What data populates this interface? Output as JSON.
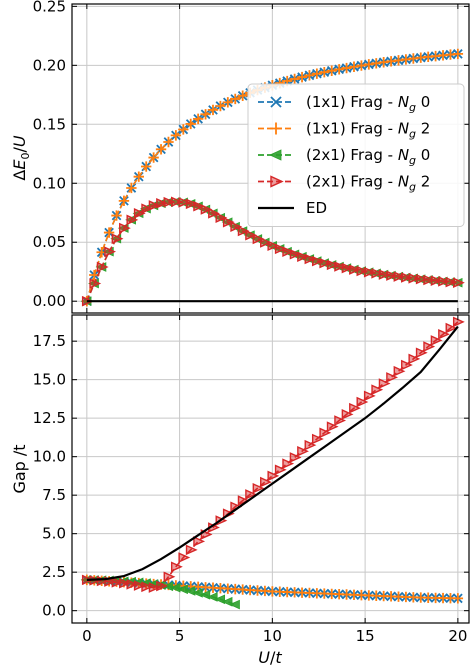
{
  "chart_data": [
    {
      "type": "line",
      "panel": "top",
      "ylabel": "ΔE_0/U",
      "xlabel": "",
      "xlim": [
        -0.8,
        20.6
      ],
      "ylim": [
        -0.01,
        0.252
      ],
      "xticks": [
        0,
        5,
        10,
        15,
        20
      ],
      "xtick_labels": [
        "0",
        "5",
        "10",
        "15",
        "20"
      ],
      "yticks": [
        0.0,
        0.05,
        0.1,
        0.15,
        0.2,
        0.25
      ],
      "ytick_labels": [
        "0.00",
        "0.05",
        "0.10",
        "0.15",
        "0.20",
        "0.25"
      ],
      "grid": true,
      "legend": {
        "placement": "center-right",
        "entries": [
          {
            "name": "(1x1) Frag - N_g 0",
            "color": "#1f77b4",
            "marker": "x",
            "linestyle": "dashed"
          },
          {
            "name": "(1x1) Frag - N_g 2",
            "color": "#ff7f0e",
            "marker": "+",
            "linestyle": "dashed"
          },
          {
            "name": "(2x1) Frag - N_g 0",
            "color": "#2ca02c",
            "marker": "triangle-left",
            "linestyle": "dashed"
          },
          {
            "name": "(2x1) Frag - N_g 2",
            "color": "#d62728",
            "marker": "triangle-right",
            "linestyle": "dashed"
          },
          {
            "name": "ED",
            "color": "#000000",
            "marker": "none",
            "linestyle": "solid"
          }
        ]
      },
      "series": [
        {
          "name": "(1x1) Frag - N_g 0",
          "color": "#1f77b4",
          "marker": "x",
          "x": [
            0,
            0.4,
            0.8,
            1.2,
            1.6,
            2,
            2.4,
            2.8,
            3.2,
            3.6,
            4,
            4.4,
            4.8,
            5.2,
            5.6,
            6,
            6.4,
            6.8,
            7.2,
            7.6,
            8,
            8.4,
            8.8,
            9.2,
            9.6,
            10,
            10.4,
            10.8,
            11.2,
            11.6,
            12,
            12.4,
            12.8,
            13.2,
            13.6,
            14,
            14.4,
            14.8,
            15.2,
            15.6,
            16,
            16.4,
            16.8,
            17.2,
            17.6,
            18,
            18.4,
            18.8,
            19.2,
            19.6,
            20
          ],
          "y": [
            0.0,
            0.0222,
            0.0415,
            0.0582,
            0.0726,
            0.0851,
            0.096,
            0.1056,
            0.1142,
            0.1218,
            0.1288,
            0.135,
            0.1406,
            0.1456,
            0.1503,
            0.1546,
            0.1585,
            0.1622,
            0.1655,
            0.1686,
            0.1715,
            0.1742,
            0.1767,
            0.179,
            0.1811,
            0.1831,
            0.1849,
            0.1867,
            0.1884,
            0.19,
            0.1915,
            0.1929,
            0.1942,
            0.1954,
            0.1966,
            0.1977,
            0.1988,
            0.1998,
            0.2008,
            0.2017,
            0.2026,
            0.2034,
            0.2042,
            0.205,
            0.2058,
            0.2065,
            0.2072,
            0.2078,
            0.2085,
            0.2091,
            0.2097
          ]
        },
        {
          "name": "(1x1) Frag - N_g 2",
          "color": "#ff7f0e",
          "marker": "+",
          "x": [
            0,
            0.4,
            0.8,
            1.2,
            1.6,
            2,
            2.4,
            2.8,
            3.2,
            3.6,
            4,
            4.4,
            4.8,
            5.2,
            5.6,
            6,
            6.4,
            6.8,
            7.2,
            7.6,
            8,
            8.4,
            8.8,
            9.2,
            9.6,
            10,
            10.4,
            10.8,
            11.2,
            11.6,
            12,
            12.4,
            12.8,
            13.2,
            13.6,
            14,
            14.4,
            14.8,
            15.2,
            15.6,
            16,
            16.4,
            16.8,
            17.2,
            17.6,
            18,
            18.4,
            18.8,
            19.2,
            19.6,
            20
          ],
          "y": [
            0.0,
            0.0222,
            0.0415,
            0.0582,
            0.0726,
            0.0851,
            0.096,
            0.1056,
            0.1142,
            0.1218,
            0.1288,
            0.135,
            0.1406,
            0.1456,
            0.1503,
            0.1546,
            0.1585,
            0.1622,
            0.1655,
            0.1686,
            0.1715,
            0.1742,
            0.1767,
            0.179,
            0.1811,
            0.1831,
            0.1849,
            0.1867,
            0.1884,
            0.19,
            0.1915,
            0.1929,
            0.1942,
            0.1954,
            0.1966,
            0.1977,
            0.1988,
            0.1998,
            0.2008,
            0.2017,
            0.2026,
            0.2034,
            0.2042,
            0.205,
            0.2058,
            0.2065,
            0.2072,
            0.2078,
            0.2085,
            0.2091,
            0.2097
          ]
        },
        {
          "name": "(2x1) Frag - N_g 0",
          "color": "#2ca02c",
          "marker": "triangle-left",
          "x": [
            0,
            0.4,
            0.8,
            1.2,
            1.6,
            2,
            2.4,
            2.8,
            3.2,
            3.6,
            4,
            4.4,
            4.8,
            5.2,
            5.6,
            6,
            6.4,
            6.8,
            7.2,
            7.6,
            8,
            8.4,
            8.8,
            9.2,
            9.6,
            10,
            10.4,
            10.8,
            11.2,
            11.6,
            12,
            12.4,
            12.8,
            13.2,
            13.6,
            14,
            14.4,
            14.8,
            15.2,
            15.6,
            16,
            16.4,
            16.8,
            17.2,
            17.6,
            18,
            18.4,
            18.8,
            19.2,
            19.6,
            20
          ],
          "y": [
            0.0,
            0.015,
            0.029,
            0.042,
            0.053,
            0.062,
            0.069,
            0.0745,
            0.0785,
            0.0812,
            0.083,
            0.084,
            0.0843,
            0.0838,
            0.0826,
            0.0805,
            0.0778,
            0.0745,
            0.0708,
            0.067,
            0.0632,
            0.0595,
            0.056,
            0.0528,
            0.0498,
            0.047,
            0.0444,
            0.042,
            0.0398,
            0.0377,
            0.0358,
            0.034,
            0.0323,
            0.0308,
            0.0294,
            0.0281,
            0.0268,
            0.0256,
            0.0246,
            0.0236,
            0.0226,
            0.0217,
            0.0209,
            0.0201,
            0.0194,
            0.0187,
            0.018,
            0.0174,
            0.0168,
            0.0162,
            0.0157
          ]
        },
        {
          "name": "(2x1) Frag - N_g 2",
          "color": "#d62728",
          "marker": "triangle-right",
          "x": [
            0,
            0.4,
            0.8,
            1.2,
            1.6,
            2,
            2.4,
            2.8,
            3.2,
            3.6,
            4,
            4.4,
            4.8,
            5.2,
            5.6,
            6,
            6.4,
            6.8,
            7.2,
            7.6,
            8,
            8.4,
            8.8,
            9.2,
            9.6,
            10,
            10.4,
            10.8,
            11.2,
            11.6,
            12,
            12.4,
            12.8,
            13.2,
            13.6,
            14,
            14.4,
            14.8,
            15.2,
            15.6,
            16,
            16.4,
            16.8,
            17.2,
            17.6,
            18,
            18.4,
            18.8,
            19.2,
            19.6,
            20
          ],
          "y": [
            0.0,
            0.015,
            0.029,
            0.042,
            0.053,
            0.062,
            0.069,
            0.0745,
            0.0785,
            0.0812,
            0.083,
            0.084,
            0.0843,
            0.0838,
            0.0826,
            0.0805,
            0.0778,
            0.0745,
            0.0708,
            0.067,
            0.0632,
            0.0595,
            0.056,
            0.0528,
            0.0498,
            0.047,
            0.0444,
            0.042,
            0.0398,
            0.0377,
            0.0358,
            0.034,
            0.0323,
            0.0308,
            0.0294,
            0.0281,
            0.0268,
            0.0256,
            0.0246,
            0.0236,
            0.0226,
            0.0217,
            0.0209,
            0.0201,
            0.0194,
            0.0187,
            0.018,
            0.0174,
            0.0168,
            0.0162,
            0.0157
          ]
        },
        {
          "name": "ED",
          "color": "#000000",
          "marker": "none",
          "x": [
            0,
            20
          ],
          "y": [
            0.0,
            0.0
          ]
        }
      ]
    },
    {
      "type": "line",
      "panel": "bottom",
      "ylabel": "Gap /t",
      "xlabel": "U/t",
      "xlim": [
        -0.8,
        20.6
      ],
      "ylim": [
        -0.8,
        19.2
      ],
      "xticks": [
        0,
        5,
        10,
        15,
        20
      ],
      "xtick_labels": [
        "0",
        "5",
        "10",
        "15",
        "20"
      ],
      "yticks": [
        0.0,
        2.5,
        5.0,
        7.5,
        10.0,
        12.5,
        15.0,
        17.5
      ],
      "ytick_labels": [
        "0.0",
        "2.5",
        "5.0",
        "7.5",
        "10.0",
        "12.5",
        "15.0",
        "17.5"
      ],
      "grid": true,
      "series": [
        {
          "name": "(1x1) Frag - N_g 0",
          "color": "#1f77b4",
          "marker": "x",
          "x": [
            0,
            0.4,
            0.8,
            1.2,
            1.6,
            2,
            2.4,
            2.8,
            3.2,
            3.6,
            4,
            4.4,
            4.8,
            5.2,
            5.6,
            6,
            6.4,
            6.8,
            7.2,
            7.6,
            8,
            8.4,
            8.8,
            9.2,
            9.6,
            10,
            10.4,
            10.8,
            11.2,
            11.6,
            12,
            12.4,
            12.8,
            13.2,
            13.6,
            14,
            14.4,
            14.8,
            15.2,
            15.6,
            16,
            16.4,
            16.8,
            17.2,
            17.6,
            18,
            18.4,
            18.8,
            19.2,
            19.6,
            20
          ],
          "y": [
            2.0,
            1.97,
            1.94,
            1.91,
            1.88,
            1.85,
            1.82,
            1.79,
            1.76,
            1.73,
            1.7,
            1.67,
            1.64,
            1.61,
            1.58,
            1.55,
            1.52,
            1.49,
            1.46,
            1.43,
            1.4,
            1.37,
            1.34,
            1.31,
            1.28,
            1.25,
            1.23,
            1.21,
            1.19,
            1.17,
            1.15,
            1.13,
            1.11,
            1.09,
            1.07,
            1.05,
            1.03,
            1.01,
            0.99,
            0.97,
            0.95,
            0.93,
            0.91,
            0.89,
            0.87,
            0.85,
            0.84,
            0.83,
            0.82,
            0.81,
            0.8
          ]
        },
        {
          "name": "(1x1) Frag - N_g 2",
          "color": "#ff7f0e",
          "marker": "+",
          "x": [
            0,
            0.4,
            0.8,
            1.2,
            1.6,
            2,
            2.4,
            2.8,
            3.2,
            3.6,
            4,
            4.4,
            4.8,
            5.2,
            5.6,
            6,
            6.4,
            6.8,
            7.2,
            7.6,
            8,
            8.4,
            8.8,
            9.2,
            9.6,
            10,
            10.4,
            10.8,
            11.2,
            11.6,
            12,
            12.4,
            12.8,
            13.2,
            13.6,
            14,
            14.4,
            14.8,
            15.2,
            15.6,
            16,
            16.4,
            16.8,
            17.2,
            17.6,
            18,
            18.4,
            18.8,
            19.2,
            19.6,
            20
          ],
          "y": [
            2.0,
            1.97,
            1.94,
            1.91,
            1.88,
            1.85,
            1.82,
            1.79,
            1.76,
            1.73,
            1.7,
            1.67,
            1.64,
            1.61,
            1.58,
            1.55,
            1.52,
            1.49,
            1.46,
            1.43,
            1.4,
            1.37,
            1.34,
            1.31,
            1.28,
            1.25,
            1.23,
            1.21,
            1.19,
            1.17,
            1.15,
            1.13,
            1.11,
            1.09,
            1.07,
            1.05,
            1.03,
            1.01,
            0.99,
            0.97,
            0.95,
            0.93,
            0.91,
            0.89,
            0.87,
            0.85,
            0.84,
            0.83,
            0.82,
            0.81,
            0.8
          ]
        },
        {
          "name": "(2x1) Frag - N_g 0",
          "color": "#2ca02c",
          "marker": "triangle-left",
          "x": [
            0,
            0.4,
            0.8,
            1.2,
            1.6,
            2,
            2.4,
            2.8,
            3.2,
            3.6,
            4,
            4.4,
            4.8,
            5.2,
            5.6,
            6,
            6.4,
            6.8,
            7.2,
            7.6,
            8
          ],
          "y": [
            2.0,
            1.99,
            1.98,
            1.96,
            1.94,
            1.91,
            1.88,
            1.84,
            1.79,
            1.73,
            1.66,
            1.58,
            1.49,
            1.39,
            1.28,
            1.16,
            1.03,
            0.89,
            0.74,
            0.58,
            0.4
          ]
        },
        {
          "name": "(2x1) Frag - N_g 2",
          "color": "#d62728",
          "marker": "triangle-right",
          "x": [
            0,
            0.4,
            0.8,
            1.2,
            1.6,
            2,
            2.4,
            2.8,
            3.2,
            3.6,
            4,
            4.4,
            4.8,
            5.2,
            5.6,
            6,
            6.4,
            6.8,
            7.2,
            7.6,
            8,
            8.4,
            8.8,
            9.2,
            9.6,
            10,
            10.4,
            10.8,
            11.2,
            11.6,
            12,
            12.4,
            12.8,
            13.2,
            13.6,
            14,
            14.4,
            14.8,
            15.2,
            15.6,
            16,
            16.4,
            16.8,
            17.2,
            17.6,
            18,
            18.4,
            18.8,
            19.2,
            19.6,
            20
          ],
          "y": [
            2.0,
            1.97,
            1.93,
            1.89,
            1.84,
            1.78,
            1.71,
            1.63,
            1.55,
            1.5,
            1.6,
            2.2,
            2.85,
            3.45,
            3.95,
            4.5,
            4.95,
            5.4,
            5.85,
            6.3,
            6.75,
            7.15,
            7.55,
            7.95,
            8.35,
            8.75,
            9.15,
            9.55,
            9.95,
            10.35,
            10.75,
            11.15,
            11.55,
            11.95,
            12.35,
            12.75,
            13.15,
            13.55,
            13.95,
            14.35,
            14.75,
            15.15,
            15.55,
            15.95,
            16.35,
            16.75,
            17.15,
            17.55,
            17.95,
            18.35,
            18.75
          ]
        },
        {
          "name": "ED",
          "color": "#000000",
          "marker": "none",
          "x": [
            0,
            1,
            2,
            3,
            4,
            5,
            6,
            7,
            8,
            9,
            10,
            11,
            12,
            13,
            14,
            15,
            16,
            17,
            18,
            19,
            20
          ],
          "y": [
            2.0,
            2.05,
            2.25,
            2.7,
            3.35,
            4.1,
            4.9,
            5.7,
            6.55,
            7.4,
            8.25,
            9.1,
            9.95,
            10.8,
            11.65,
            12.5,
            13.45,
            14.45,
            15.5,
            16.95,
            18.45
          ]
        }
      ]
    }
  ]
}
